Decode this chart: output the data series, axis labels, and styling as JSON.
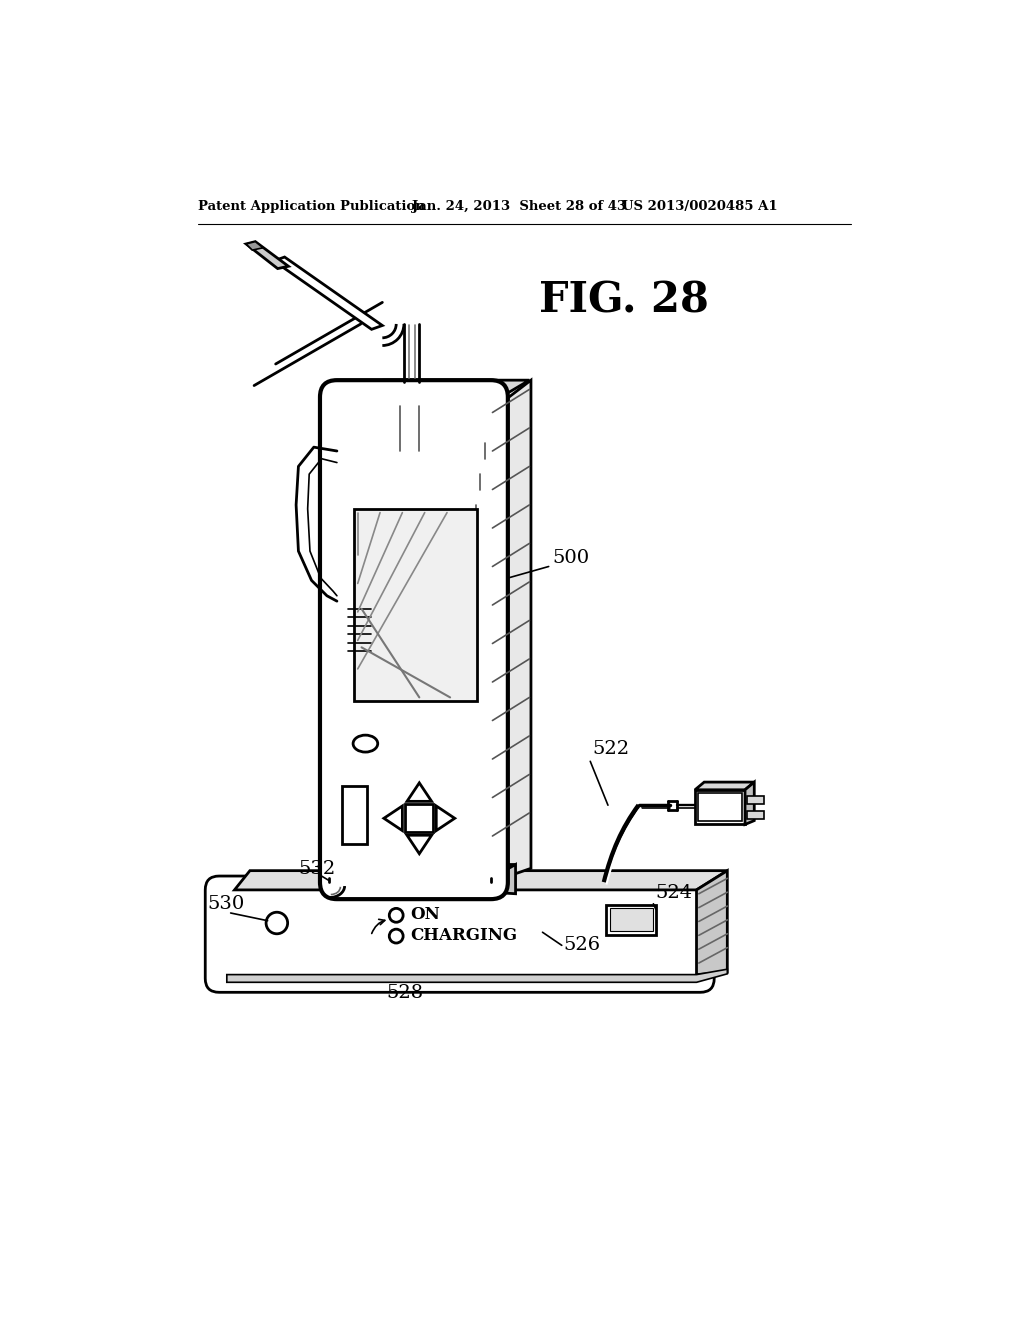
{
  "header_left": "Patent Application Publication",
  "header_mid": "Jan. 24, 2013  Sheet 28 of 43",
  "header_right": "US 2013/0020485 A1",
  "background_color": "#ffffff",
  "line_color": "#000000",
  "fig_label": "FIG. 28"
}
